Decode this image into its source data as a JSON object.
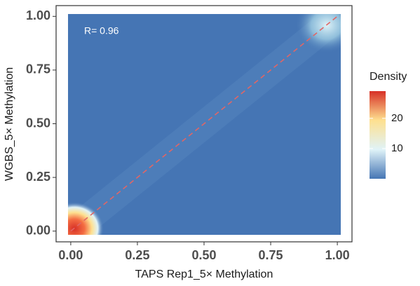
{
  "chart_data": {
    "type": "density",
    "annotation": "R= 0.96",
    "x_label": "TAPS Rep1_5× Methylation",
    "y_label": "WGBS_5× Methylation",
    "xlim": [
      -0.055,
      1.055
    ],
    "ylim": [
      -0.05,
      1.05
    ],
    "xticks": [
      {
        "value": 0,
        "label": "0.00"
      },
      {
        "value": 0.25,
        "label": "0.25"
      },
      {
        "value": 0.5,
        "label": "0.50"
      },
      {
        "value": 0.75,
        "label": "0.75"
      },
      {
        "value": 1,
        "label": "1.00"
      }
    ],
    "yticks": [
      {
        "value": 0,
        "label": "0.00"
      },
      {
        "value": 0.25,
        "label": "0.25"
      },
      {
        "value": 0.5,
        "label": "0.50"
      },
      {
        "value": 0.75,
        "label": "0.75"
      },
      {
        "value": 1,
        "label": "1.00"
      }
    ],
    "legend_title": "Density",
    "clim": [
      0,
      29
    ],
    "cticks": [
      10,
      20
    ],
    "colorscale": [
      "#4575b4",
      "#e0f3f8",
      "#fee090",
      "#d73027"
    ],
    "reference_line_color": "#e06666"
  }
}
